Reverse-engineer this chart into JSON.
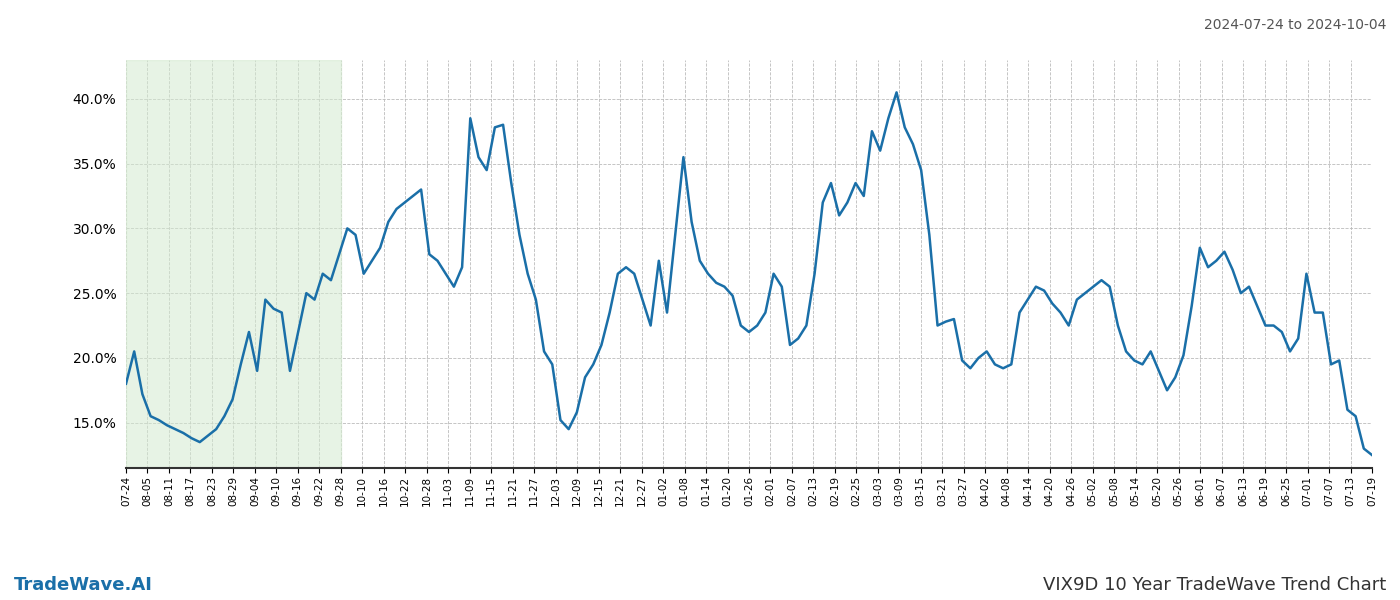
{
  "title_right": "2024-07-24 to 2024-10-04",
  "footer_left": "TradeWave.AI",
  "footer_right": "VIX9D 10 Year TradeWave Trend Chart",
  "line_color": "#1a6fa8",
  "line_width": 1.8,
  "shading_color": "#d4ead0",
  "shading_alpha": 0.55,
  "background_color": "#ffffff",
  "grid_color": "#bbbbbb",
  "grid_style": "--",
  "ylim": [
    11.5,
    43.0
  ],
  "yticks": [
    15.0,
    20.0,
    25.0,
    30.0,
    35.0,
    40.0
  ],
  "x_labels": [
    "07-24",
    "08-05",
    "08-11",
    "08-17",
    "08-23",
    "08-29",
    "09-04",
    "09-10",
    "09-16",
    "09-22",
    "09-28",
    "10-10",
    "10-16",
    "10-22",
    "10-28",
    "11-03",
    "11-09",
    "11-15",
    "11-21",
    "11-27",
    "12-03",
    "12-09",
    "12-15",
    "12-21",
    "12-27",
    "01-02",
    "01-08",
    "01-14",
    "01-20",
    "01-26",
    "02-01",
    "02-07",
    "02-13",
    "02-19",
    "02-25",
    "03-03",
    "03-09",
    "03-15",
    "03-21",
    "03-27",
    "04-02",
    "04-08",
    "04-14",
    "04-20",
    "04-26",
    "05-02",
    "05-08",
    "05-14",
    "05-20",
    "05-26",
    "06-01",
    "06-07",
    "06-13",
    "06-19",
    "06-25",
    "07-01",
    "07-07",
    "07-13",
    "07-19"
  ],
  "shading_label_start": "07-24",
  "shading_label_end": "09-28",
  "y_values": [
    18.0,
    20.5,
    17.2,
    15.5,
    15.2,
    14.8,
    14.5,
    14.2,
    13.8,
    13.5,
    14.0,
    14.5,
    15.5,
    16.8,
    19.5,
    22.0,
    19.0,
    24.5,
    23.8,
    23.5,
    19.0,
    22.0,
    25.0,
    24.5,
    26.5,
    26.0,
    28.0,
    30.0,
    29.5,
    26.5,
    27.5,
    28.5,
    30.5,
    31.5,
    32.0,
    32.5,
    33.0,
    28.0,
    27.5,
    26.5,
    25.5,
    27.0,
    38.5,
    35.5,
    34.5,
    37.8,
    38.0,
    33.5,
    29.5,
    26.5,
    24.5,
    20.5,
    19.5,
    15.2,
    14.5,
    15.8,
    18.5,
    19.5,
    21.0,
    23.5,
    26.5,
    27.0,
    26.5,
    24.5,
    22.5,
    27.5,
    23.5,
    29.5,
    35.5,
    30.5,
    27.5,
    26.5,
    25.8,
    25.5,
    24.8,
    22.5,
    22.0,
    22.5,
    23.5,
    26.5,
    25.5,
    21.0,
    21.5,
    22.5,
    26.5,
    32.0,
    33.5,
    31.0,
    32.0,
    33.5,
    32.5,
    37.5,
    36.0,
    38.5,
    40.5,
    37.8,
    36.5,
    34.5,
    29.5,
    22.5,
    22.8,
    23.0,
    19.8,
    19.2,
    20.0,
    20.5,
    19.5,
    19.2,
    19.5,
    23.5,
    24.5,
    25.5,
    25.2,
    24.2,
    23.5,
    22.5,
    24.5,
    25.0,
    25.5,
    26.0,
    25.5,
    22.5,
    20.5,
    19.8,
    19.5,
    20.5,
    19.0,
    17.5,
    18.5,
    20.2,
    24.0,
    28.5,
    27.0,
    27.5,
    28.2,
    26.8,
    25.0,
    25.5,
    24.0,
    22.5,
    22.5,
    22.0,
    20.5,
    21.5,
    26.5,
    23.5,
    23.5,
    19.5,
    19.8,
    16.0,
    15.5,
    13.0,
    12.5
  ]
}
